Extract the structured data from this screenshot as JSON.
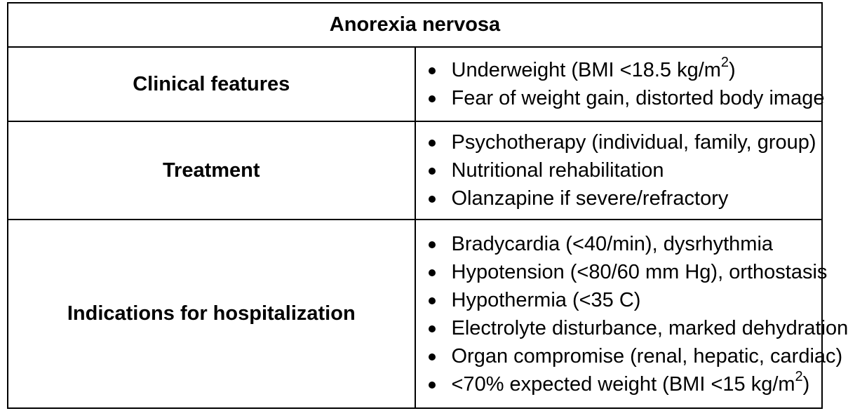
{
  "title": "Anorexia nervosa",
  "rows": [
    {
      "label": "Clinical features",
      "items": [
        {
          "text": "Underweight (BMI <18.5 kg/m",
          "sup": "2",
          "after": ")"
        },
        {
          "text": "Fear of weight gain, distorted body image"
        }
      ]
    },
    {
      "label": "Treatment",
      "items": [
        {
          "text": "Psychotherapy (individual, family, group)"
        },
        {
          "text": "Nutritional rehabilitation"
        },
        {
          "text": "Olanzapine if severe/refractory"
        }
      ]
    },
    {
      "label": "Indications for hospitalization",
      "items": [
        {
          "text": "Bradycardia (<40/min), dysrhythmia"
        },
        {
          "text": "Hypotension (<80/60 mm Hg), orthostasis"
        },
        {
          "text": "Hypothermia (<35 C)"
        },
        {
          "text": "Electrolyte disturbance, marked dehydration"
        },
        {
          "text": "Organ compromise (renal, hepatic, cardiac)"
        },
        {
          "text": "<70% expected weight (BMI <15 kg/m",
          "sup": "2",
          "after": ")"
        }
      ]
    }
  ]
}
